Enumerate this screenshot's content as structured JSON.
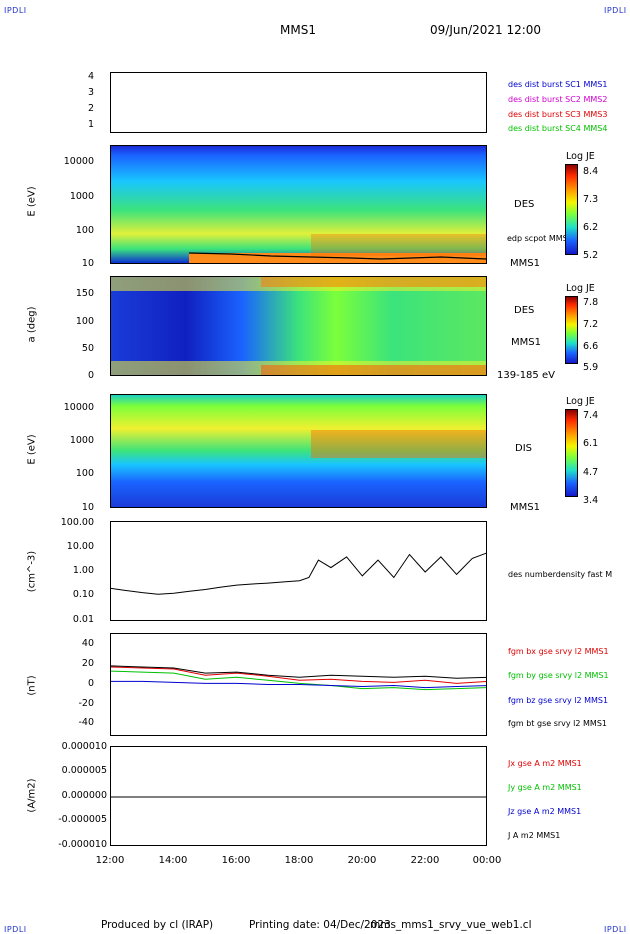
{
  "header": {
    "corner_tl": "IPDLI",
    "corner_tr": "IPDLI",
    "corner_bl": "IPDLI",
    "corner_br": "IPDLI",
    "mission": "MMS1",
    "datetime": "09/Jun/2021 12:00"
  },
  "footer": {
    "produced_by": "Produced by cl (IRAP)",
    "printing_date": "Printing date: 04/Dec/2023",
    "filename": "mms_mms1_srvy_vue_web1.cl"
  },
  "x_axis": {
    "ticks": [
      "12:00",
      "14:00",
      "16:00",
      "18:00",
      "20:00",
      "22:00",
      "00:00"
    ]
  },
  "colors": {
    "red": "#e00000",
    "green": "#00c000",
    "blue": "#0000d0",
    "black": "#000000",
    "magenta": "#d000d0"
  },
  "chart_data": [
    {
      "type": "scatter",
      "title": "",
      "yticks": [
        "4",
        "3",
        "2",
        "1"
      ],
      "legend": [
        {
          "name": "des dist burst SC1 MMS1",
          "color": "#0000d0"
        },
        {
          "name": "des dist burst SC2 MMS2",
          "color": "#d000d0"
        },
        {
          "name": "des dist burst SC3 MMS3",
          "color": "#e00000"
        },
        {
          "name": "des dist burst SC4 MMS4",
          "color": "#00c000"
        }
      ]
    },
    {
      "type": "heatmap",
      "ylabel": "E (eV)",
      "yscale": "log",
      "yticks": [
        "10000",
        "1000",
        "100",
        "10"
      ],
      "labels": [
        "DES",
        "edp scpot MMS1",
        "MMS1"
      ],
      "colorbar_title": "Log JE",
      "colorbar_ticks": [
        "8.4",
        "7.3",
        "6.2",
        "5.2"
      ]
    },
    {
      "type": "heatmap",
      "ylabel": "a (deg)",
      "yticks": [
        "150",
        "100",
        "50",
        "0"
      ],
      "labels": [
        "DES",
        "MMS1",
        "139-185 eV"
      ],
      "colorbar_title": "Log JE",
      "colorbar_ticks": [
        "7.8",
        "7.2",
        "6.6",
        "5.9"
      ]
    },
    {
      "type": "heatmap",
      "ylabel": "E (eV)",
      "yscale": "log",
      "yticks": [
        "10000",
        "1000",
        "100",
        "10"
      ],
      "labels": [
        "DIS",
        "MMS1"
      ],
      "colorbar_title": "Log JE",
      "colorbar_ticks": [
        "7.4",
        "6.1",
        "4.7",
        "3.4"
      ]
    },
    {
      "type": "line",
      "ylabel": "(cm^-3)",
      "yscale": "log",
      "yticks": [
        "100.00",
        "10.00",
        "1.00",
        "0.10",
        "0.01"
      ],
      "series": [
        {
          "name": "des numberdensity fast M",
          "color": "#000000",
          "x_hours": [
            12.0,
            12.5,
            13.0,
            13.5,
            14.0,
            14.5,
            15.0,
            15.5,
            16.0,
            16.5,
            17.0,
            17.5,
            18.0,
            18.3,
            18.6,
            19.0,
            19.5,
            20.0,
            20.5,
            21.0,
            21.5,
            22.0,
            22.5,
            23.0,
            23.5,
            24.0
          ],
          "values": [
            0.22,
            0.18,
            0.15,
            0.13,
            0.14,
            0.17,
            0.2,
            0.25,
            0.3,
            0.33,
            0.36,
            0.4,
            0.45,
            0.6,
            3.0,
            1.5,
            4.0,
            0.7,
            3.0,
            0.6,
            5.0,
            1.0,
            4.0,
            0.8,
            3.5,
            6.0
          ]
        }
      ]
    },
    {
      "type": "line",
      "ylabel": "(nT)",
      "yticks": [
        "40",
        "20",
        "0",
        "-20",
        "-40"
      ],
      "ylim": [
        -50,
        50
      ],
      "series": [
        {
          "name": "fgm bx gse srvy l2 MMS1",
          "color": "#e00000",
          "x_hours": [
            12.0,
            13.0,
            14.0,
            15.0,
            16.0,
            17.0,
            18.0,
            19.0,
            20.0,
            21.0,
            22.0,
            23.0,
            24.0
          ],
          "values": [
            18,
            17,
            16,
            10,
            12,
            9,
            5,
            6,
            4,
            3,
            5,
            2,
            4
          ]
        },
        {
          "name": "fgm by gse srvy l2 MMS1",
          "color": "#00c000",
          "x_hours": [
            12.0,
            13.0,
            14.0,
            15.0,
            16.0,
            17.0,
            18.0,
            19.0,
            20.0,
            21.0,
            22.0,
            23.0,
            24.0
          ],
          "values": [
            14,
            13,
            12,
            6,
            8,
            5,
            2,
            0,
            -3,
            -2,
            -4,
            -3,
            -2
          ]
        },
        {
          "name": "fgm bz gse srvy l2 MMS1",
          "color": "#0000d0",
          "x_hours": [
            12.0,
            13.0,
            14.0,
            15.0,
            16.0,
            17.0,
            18.0,
            19.0,
            20.0,
            21.0,
            22.0,
            23.0,
            24.0
          ],
          "values": [
            4,
            4,
            3,
            2,
            2,
            1,
            1,
            0,
            -1,
            0,
            -2,
            -1,
            0
          ]
        },
        {
          "name": "fgm bt gse srvy l2 MMS1",
          "color": "#000000",
          "x_hours": [
            12.0,
            13.0,
            14.0,
            15.0,
            16.0,
            17.0,
            18.0,
            19.0,
            20.0,
            21.0,
            22.0,
            23.0,
            24.0
          ],
          "values": [
            19,
            18,
            17,
            12,
            13,
            10,
            8,
            10,
            9,
            8,
            9,
            7,
            8
          ]
        }
      ]
    },
    {
      "type": "line",
      "ylabel": "(A/m2)",
      "yticks": [
        "0.000010",
        "0.000005",
        "0.000000",
        "-0.000005",
        "-0.000010"
      ],
      "ylim": [
        -1e-05,
        1e-05
      ],
      "series": [
        {
          "name": "Jx gse A m2 MMS1",
          "color": "#e00000"
        },
        {
          "name": "Jy gse A m2 MMS1",
          "color": "#00c000"
        },
        {
          "name": "Jz gse A m2 MMS1",
          "color": "#0000d0"
        },
        {
          "name": "J A m2 MMS1",
          "color": "#000000",
          "x_hours": [
            12.0,
            24.0
          ],
          "values": [
            0.0,
            0.0
          ]
        }
      ]
    }
  ]
}
